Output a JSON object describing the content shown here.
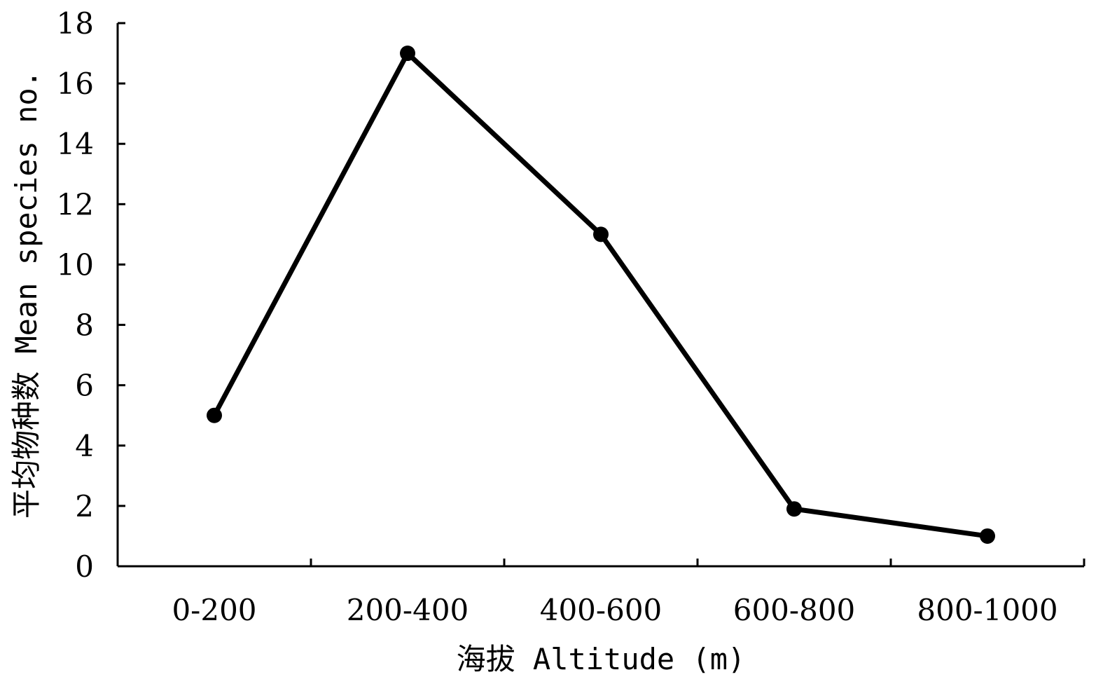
{
  "chart_data": {
    "type": "line",
    "categories": [
      "0-200",
      "200-400",
      "400-600",
      "600-800",
      "800-1000"
    ],
    "values": [
      5,
      17,
      11,
      1.9,
      1
    ],
    "title": "",
    "xlabel": "海拔 Altitude (m)",
    "ylabel": "平均物种数 Mean species no.",
    "ylim": [
      0,
      18
    ],
    "yticks": [
      "0",
      "2",
      "4",
      "6",
      "8",
      "10",
      "12",
      "14",
      "16",
      "18"
    ],
    "grid": false,
    "legend": "none",
    "line_color": "#000000",
    "marker": "filled-circle"
  }
}
